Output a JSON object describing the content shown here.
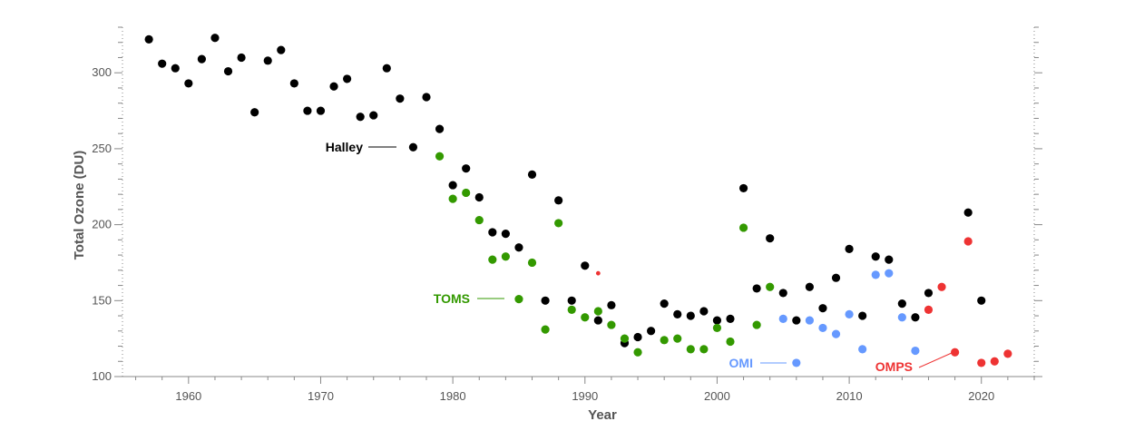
{
  "colors": {
    "Halley": "#000000",
    "TOMS": "#339900",
    "OMI": "#6699ff",
    "OMPS": "#ee3333",
    "axis": "#888888",
    "text": "#555555"
  },
  "chart_data": {
    "type": "scatter",
    "title": "",
    "xlabel": "Year",
    "ylabel": "Total Ozone (DU)",
    "xlim": [
      1955,
      2024
    ],
    "ylim": [
      100,
      330
    ],
    "x_ticks": [
      1960,
      1970,
      1980,
      1990,
      2000,
      2010,
      2020
    ],
    "y_ticks": [
      100,
      150,
      200,
      250,
      300
    ],
    "grid": false,
    "legend": "inline labels next to series",
    "series": [
      {
        "name": "Halley",
        "points": [
          [
            1957,
            322
          ],
          [
            1958,
            306
          ],
          [
            1959,
            303
          ],
          [
            1960,
            293
          ],
          [
            1961,
            309
          ],
          [
            1962,
            323
          ],
          [
            1963,
            301
          ],
          [
            1964,
            310
          ],
          [
            1965,
            274
          ],
          [
            1966,
            308
          ],
          [
            1967,
            315
          ],
          [
            1968,
            293
          ],
          [
            1969,
            275
          ],
          [
            1970,
            275
          ],
          [
            1971,
            291
          ],
          [
            1972,
            296
          ],
          [
            1973,
            271
          ],
          [
            1974,
            272
          ],
          [
            1975,
            303
          ],
          [
            1976,
            283
          ],
          [
            1977,
            251
          ],
          [
            1978,
            284
          ],
          [
            1979,
            263
          ],
          [
            1980,
            226
          ],
          [
            1981,
            237
          ],
          [
            1982,
            218
          ],
          [
            1983,
            195
          ],
          [
            1984,
            194
          ],
          [
            1985,
            185
          ],
          [
            1986,
            233
          ],
          [
            1987,
            150
          ],
          [
            1988,
            216
          ],
          [
            1989,
            150
          ],
          [
            1990,
            173
          ],
          [
            1991,
            137
          ],
          [
            1992,
            147
          ],
          [
            1993,
            122
          ],
          [
            1994,
            126
          ],
          [
            1995,
            130
          ],
          [
            1996,
            148
          ],
          [
            1997,
            141
          ],
          [
            1998,
            140
          ],
          [
            1999,
            143
          ],
          [
            2000,
            137
          ],
          [
            2001,
            138
          ],
          [
            2002,
            224
          ],
          [
            2003,
            158
          ],
          [
            2004,
            191
          ],
          [
            2005,
            155
          ],
          [
            2006,
            137
          ],
          [
            2007,
            159
          ],
          [
            2008,
            145
          ],
          [
            2009,
            165
          ],
          [
            2010,
            184
          ],
          [
            2011,
            140
          ],
          [
            2012,
            179
          ],
          [
            2013,
            177
          ],
          [
            2014,
            148
          ],
          [
            2015,
            139
          ],
          [
            2016,
            155
          ],
          [
            2019,
            208
          ],
          [
            2020,
            150
          ]
        ]
      },
      {
        "name": "TOMS",
        "points": [
          [
            1979,
            245
          ],
          [
            1980,
            217
          ],
          [
            1981,
            221
          ],
          [
            1982,
            203
          ],
          [
            1983,
            177
          ],
          [
            1984,
            179
          ],
          [
            1985,
            151
          ],
          [
            1986,
            175
          ],
          [
            1987,
            131
          ],
          [
            1988,
            201
          ],
          [
            1989,
            144
          ],
          [
            1990,
            139
          ],
          [
            1991,
            143
          ],
          [
            1992,
            134
          ],
          [
            1993,
            125
          ],
          [
            1994,
            116
          ],
          [
            1996,
            124
          ],
          [
            1997,
            125
          ],
          [
            1998,
            118
          ],
          [
            1999,
            118
          ],
          [
            2000,
            132
          ],
          [
            2001,
            123
          ],
          [
            2002,
            198
          ],
          [
            2003,
            134
          ],
          [
            2004,
            159
          ]
        ]
      },
      {
        "name": "OMI",
        "points": [
          [
            2005,
            138
          ],
          [
            2006,
            109
          ],
          [
            2007,
            137
          ],
          [
            2008,
            132
          ],
          [
            2009,
            128
          ],
          [
            2010,
            141
          ],
          [
            2011,
            118
          ],
          [
            2012,
            167
          ],
          [
            2013,
            168
          ],
          [
            2014,
            139
          ],
          [
            2015,
            117
          ]
        ]
      },
      {
        "name": "OMPS",
        "points": [
          [
            2016,
            144
          ],
          [
            2017,
            159
          ],
          [
            2018,
            116
          ],
          [
            2019,
            189
          ],
          [
            2020,
            109
          ],
          [
            2021,
            110
          ],
          [
            2022,
            115
          ]
        ]
      }
    ],
    "stray_marker": {
      "x": 1991,
      "y": 168
    },
    "annotations": [
      {
        "series": "Halley",
        "text": "Halley"
      },
      {
        "series": "TOMS",
        "text": "TOMS"
      },
      {
        "series": "OMI",
        "text": "OMI"
      },
      {
        "series": "OMPS",
        "text": "OMPS"
      }
    ]
  }
}
